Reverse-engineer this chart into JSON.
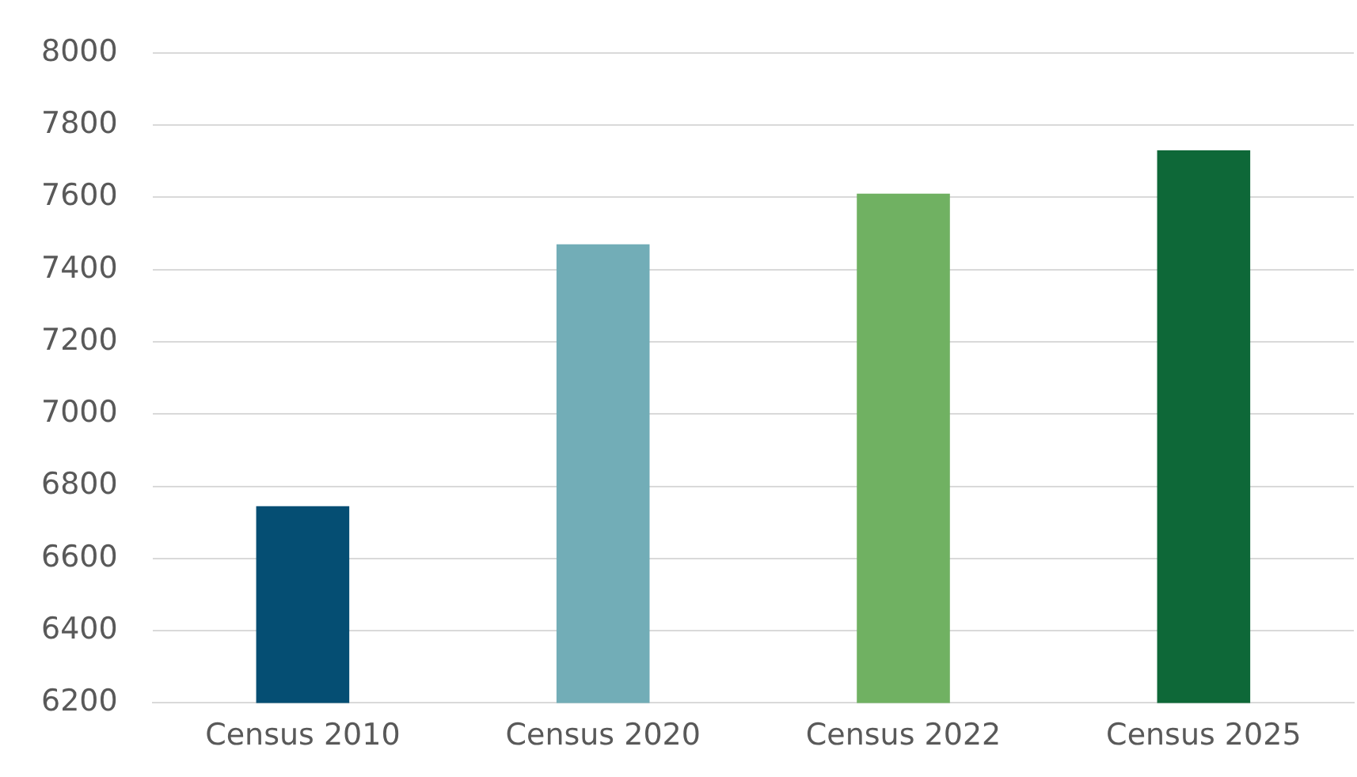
{
  "chart_data": {
    "type": "bar",
    "categories": [
      "Census 2010",
      "Census 2020",
      "Census 2022",
      "Census 2025"
    ],
    "values": [
      6745,
      7470,
      7610,
      7730
    ],
    "colors": [
      "#054e73",
      "#72adb7",
      "#70b162",
      "#0e6838"
    ],
    "ylim": [
      6200,
      8000
    ],
    "yticks": [
      6200,
      6400,
      6600,
      6800,
      7000,
      7200,
      7400,
      7600,
      7800,
      8000
    ],
    "grid": "y",
    "legend": false
  }
}
